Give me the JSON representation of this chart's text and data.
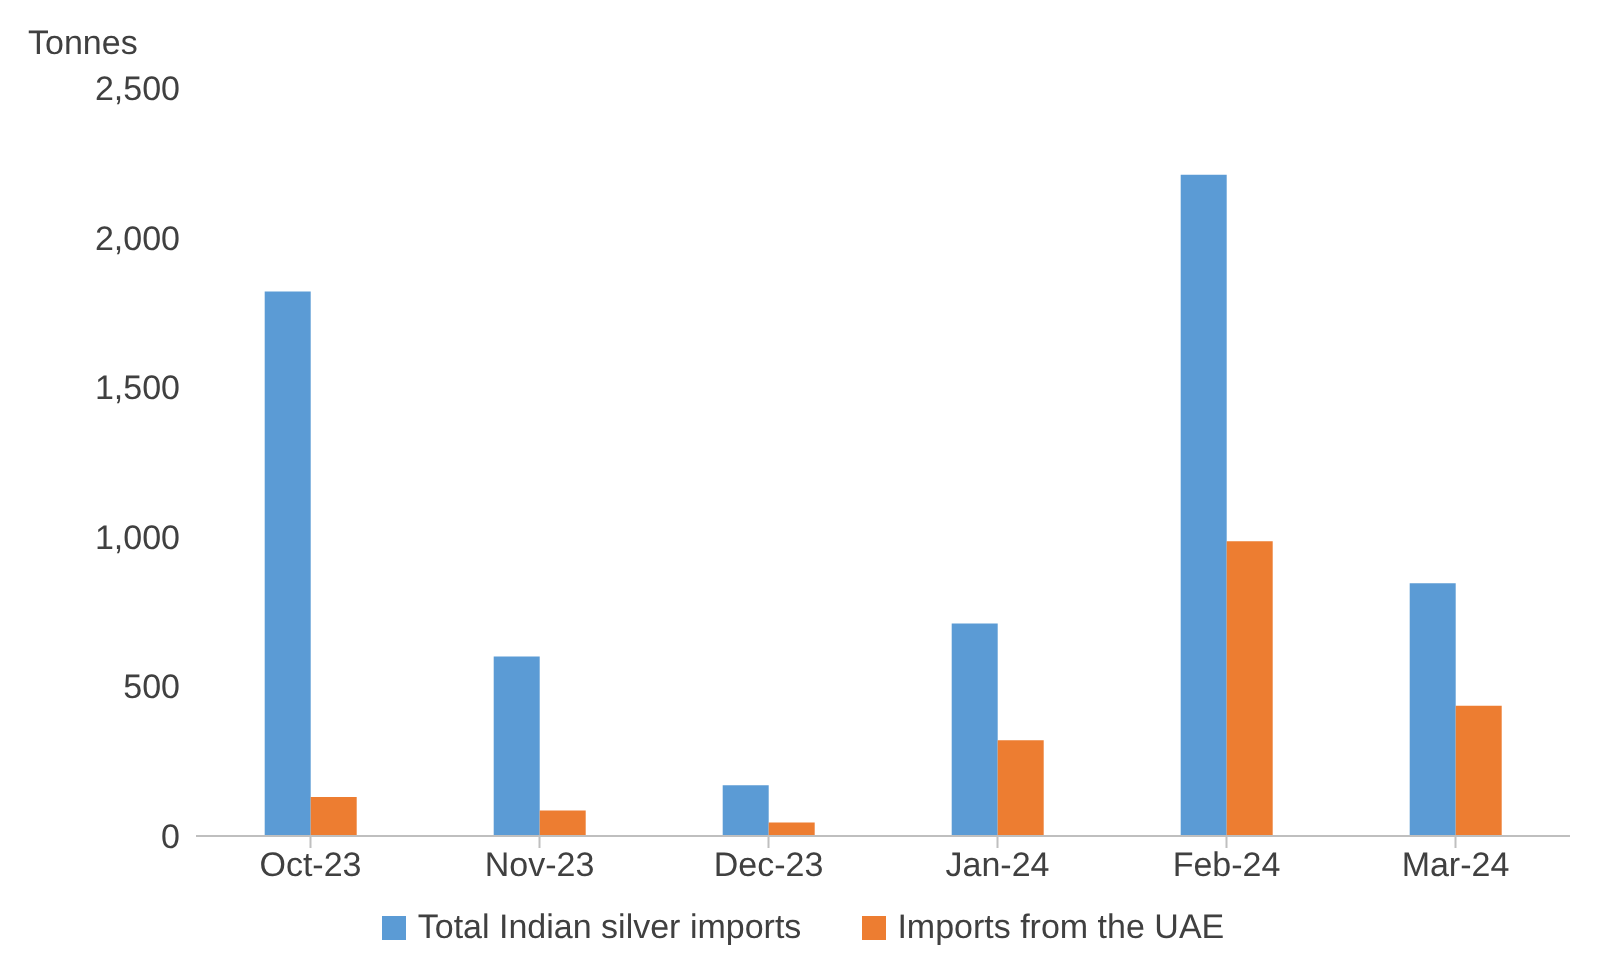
{
  "chart_data": {
    "type": "bar",
    "ylabel": "Tonnes",
    "categories": [
      "Oct-23",
      "Nov-23",
      "Dec-23",
      "Jan-24",
      "Feb-24",
      "Mar-24"
    ],
    "series": [
      {
        "name": "Total Indian silver imports",
        "color": "#5b9bd5",
        "values": [
          1820,
          600,
          170,
          710,
          2210,
          845
        ]
      },
      {
        "name": "Imports from the UAE",
        "color": "#ed7d31",
        "values": [
          130,
          85,
          45,
          320,
          985,
          435
        ]
      }
    ],
    "ylim": [
      0,
      2500
    ],
    "yticks": [
      0,
      500,
      {
        "value": 1000,
        "label": "1,000"
      },
      {
        "value": 1500,
        "label": "1,500"
      },
      {
        "value": 2000,
        "label": "2,000"
      },
      {
        "value": 2500,
        "label": "2,500"
      }
    ],
    "grid": false,
    "legend": "bottom"
  }
}
